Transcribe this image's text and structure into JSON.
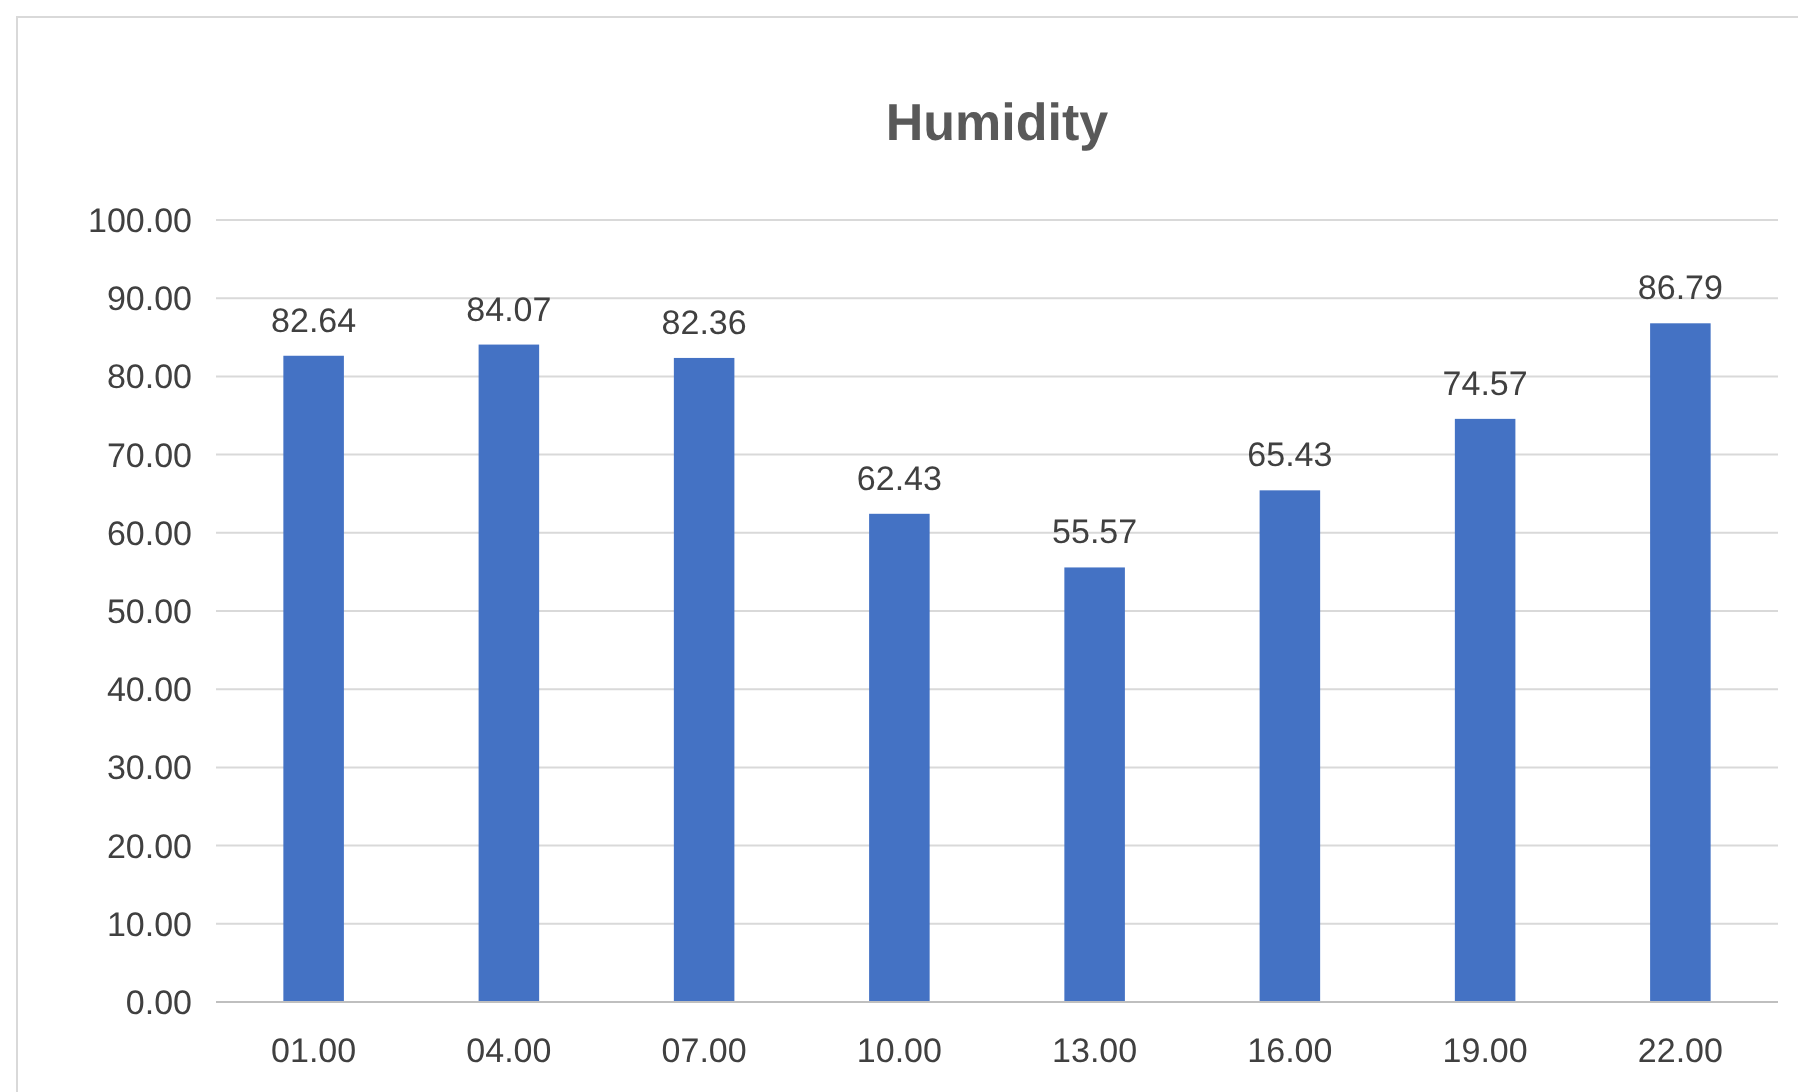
{
  "chart_data": {
    "type": "bar",
    "title": "Humidity",
    "categories": [
      "01.00",
      "04.00",
      "07.00",
      "10.00",
      "13.00",
      "16.00",
      "19.00",
      "22.00"
    ],
    "values": [
      82.64,
      84.07,
      82.36,
      62.43,
      55.57,
      65.43,
      74.57,
      86.79
    ],
    "color": "#4472c4",
    "ylim": [
      0,
      100
    ],
    "yticks": [
      {
        "value": 0,
        "label": "0.00"
      },
      {
        "value": 10,
        "label": "10.00"
      },
      {
        "value": 20,
        "label": "20.00"
      },
      {
        "value": 30,
        "label": "30.00"
      },
      {
        "value": 40,
        "label": "40.00"
      },
      {
        "value": 50,
        "label": "50.00"
      },
      {
        "value": 60,
        "label": "60.00"
      },
      {
        "value": 70,
        "label": "70.00"
      },
      {
        "value": 80,
        "label": "80.00"
      },
      {
        "value": 90,
        "label": "90.00"
      },
      {
        "value": 100,
        "label": "100.00"
      }
    ],
    "grid": "y",
    "data_labels": true
  }
}
